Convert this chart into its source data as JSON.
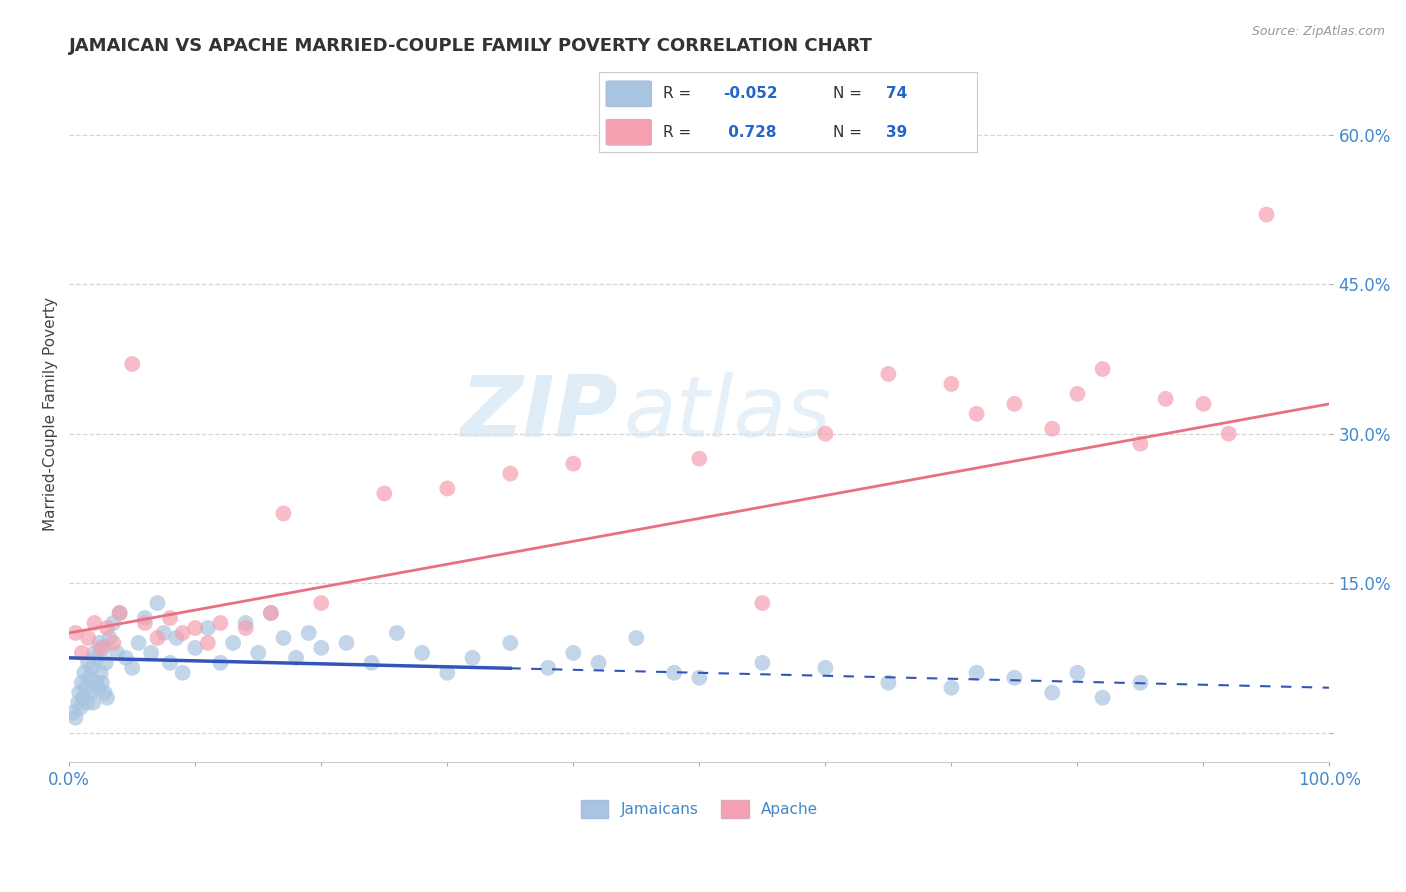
{
  "title": "JAMAICAN VS APACHE MARRIED-COUPLE FAMILY POVERTY CORRELATION CHART",
  "source": "Source: ZipAtlas.com",
  "ylabel": "Married-Couple Family Poverty",
  "xlim": [
    0,
    100
  ],
  "ylim": [
    -3,
    67
  ],
  "background_color": "#ffffff",
  "grid_color": "#cccccc",
  "jamaicans_color": "#a8c4e0",
  "apache_color": "#f4a0b0",
  "jamaicans_line_color": "#3355bb",
  "apache_line_color": "#e87080",
  "watermark_text": "ZIP",
  "watermark_text2": "atlas",
  "jamaicans_scatter_x": [
    0.3,
    0.5,
    0.7,
    0.8,
    0.9,
    1.0,
    1.1,
    1.2,
    1.3,
    1.4,
    1.5,
    1.6,
    1.7,
    1.8,
    1.9,
    2.0,
    2.1,
    2.2,
    2.3,
    2.4,
    2.5,
    2.6,
    2.7,
    2.8,
    2.9,
    3.0,
    3.2,
    3.5,
    3.8,
    4.0,
    4.5,
    5.0,
    5.5,
    6.0,
    6.5,
    7.0,
    7.5,
    8.0,
    8.5,
    9.0,
    10.0,
    11.0,
    12.0,
    13.0,
    14.0,
    15.0,
    16.0,
    17.0,
    18.0,
    19.0,
    20.0,
    22.0,
    24.0,
    26.0,
    28.0,
    30.0,
    32.0,
    35.0,
    38.0,
    40.0,
    42.0,
    45.0,
    48.0,
    50.0,
    55.0,
    60.0,
    65.0,
    70.0,
    72.0,
    75.0,
    78.0,
    80.0,
    82.0,
    85.0
  ],
  "jamaicans_scatter_y": [
    2.0,
    1.5,
    3.0,
    4.0,
    2.5,
    5.0,
    3.5,
    6.0,
    4.5,
    3.0,
    7.0,
    5.5,
    4.0,
    6.5,
    3.0,
    8.0,
    5.0,
    7.5,
    4.5,
    9.0,
    6.0,
    5.0,
    8.5,
    4.0,
    7.0,
    3.5,
    9.5,
    11.0,
    8.0,
    12.0,
    7.5,
    6.5,
    9.0,
    11.5,
    8.0,
    13.0,
    10.0,
    7.0,
    9.5,
    6.0,
    8.5,
    10.5,
    7.0,
    9.0,
    11.0,
    8.0,
    12.0,
    9.5,
    7.5,
    10.0,
    8.5,
    9.0,
    7.0,
    10.0,
    8.0,
    6.0,
    7.5,
    9.0,
    6.5,
    8.0,
    7.0,
    9.5,
    6.0,
    5.5,
    7.0,
    6.5,
    5.0,
    4.5,
    6.0,
    5.5,
    4.0,
    6.0,
    3.5,
    5.0
  ],
  "apache_scatter_x": [
    0.5,
    1.0,
    1.5,
    2.0,
    2.5,
    3.0,
    3.5,
    4.0,
    5.0,
    6.0,
    7.0,
    8.0,
    9.0,
    10.0,
    11.0,
    12.0,
    14.0,
    16.0,
    17.0,
    20.0,
    25.0,
    30.0,
    35.0,
    40.0,
    50.0,
    55.0,
    60.0,
    65.0,
    70.0,
    72.0,
    75.0,
    78.0,
    80.0,
    82.0,
    85.0,
    87.0,
    90.0,
    92.0,
    95.0
  ],
  "apache_scatter_y": [
    10.0,
    8.0,
    9.5,
    11.0,
    8.5,
    10.5,
    9.0,
    12.0,
    37.0,
    11.0,
    9.5,
    11.5,
    10.0,
    10.5,
    9.0,
    11.0,
    10.5,
    12.0,
    22.0,
    13.0,
    24.0,
    24.5,
    26.0,
    27.0,
    27.5,
    13.0,
    30.0,
    36.0,
    35.0,
    32.0,
    33.0,
    30.5,
    34.0,
    36.5,
    29.0,
    33.5,
    33.0,
    30.0,
    52.0
  ],
  "jamaicans_line_x0": 0,
  "jamaicans_line_x1": 100,
  "jamaicans_line_y0": 7.5,
  "jamaicans_line_y1": 4.5,
  "jamaicans_solid_end": 35,
  "apache_line_x0": 0,
  "apache_line_x1": 100,
  "apache_line_y0": 10.0,
  "apache_line_y1": 33.0,
  "legend_items": [
    {
      "label": "R = -0.052   N = 74",
      "color": "#a8c4e0"
    },
    {
      "label": "R =  0.728   N = 39",
      "color": "#f4a0b0"
    }
  ]
}
